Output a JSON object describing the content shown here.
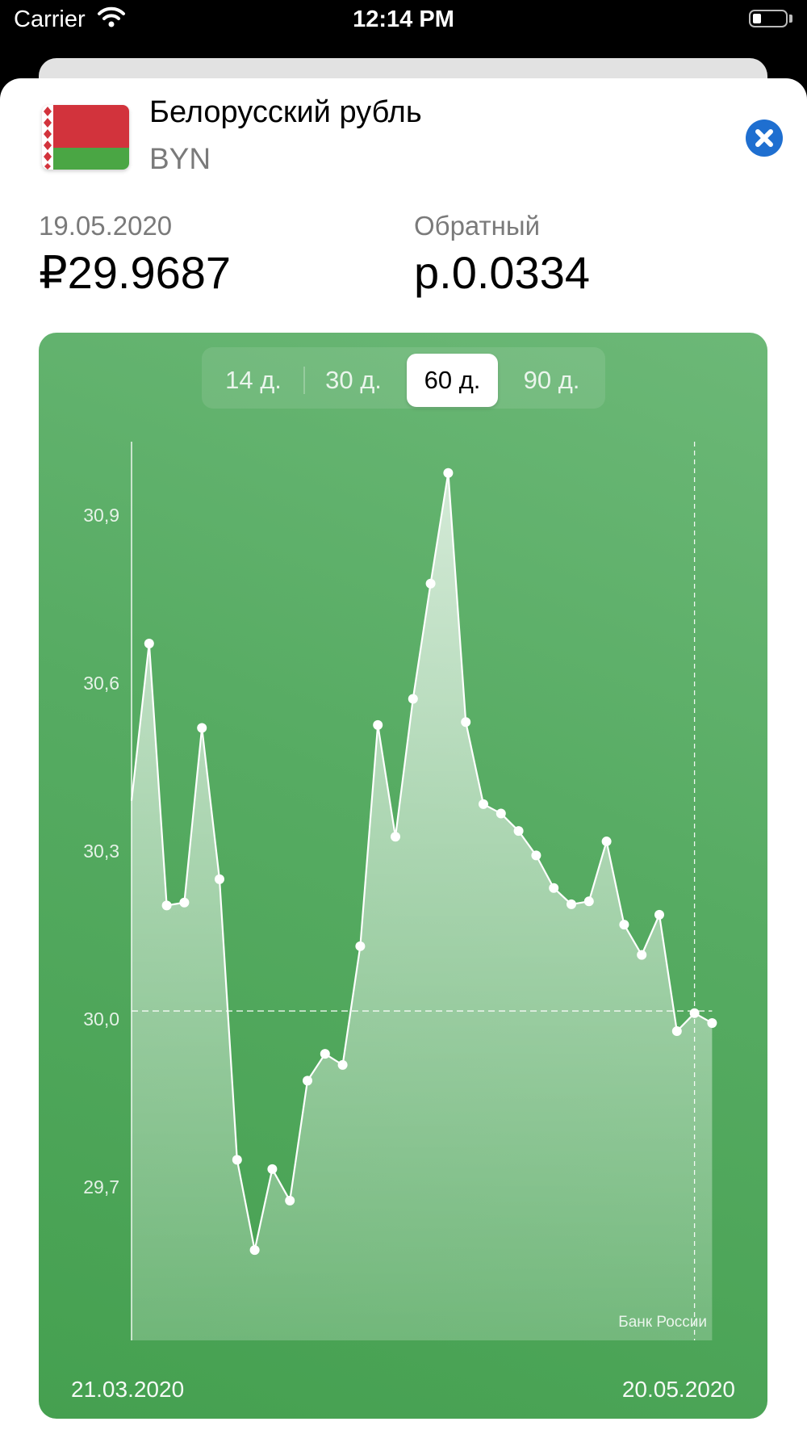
{
  "status_bar": {
    "carrier": "Carrier",
    "time": "12:14 PM"
  },
  "currency": {
    "name": "Белорусский рубль",
    "code": "BYN",
    "flag": "belarus-flag"
  },
  "rate": {
    "date": "19.05.2020",
    "value": "₽29.9687",
    "reverse_label": "Обратный",
    "reverse_value": "р.0.0334"
  },
  "period_selector": {
    "options": [
      "14 д.",
      "30 д.",
      "60 д.",
      "90 д."
    ],
    "selected": "60 д."
  },
  "chart_data": {
    "type": "area",
    "x_start": "21.03.2020",
    "x_end": "20.05.2020",
    "source": "Банк России",
    "y_ticks": [
      "30,9",
      "30,6",
      "30,3",
      "30,0",
      "29,7"
    ],
    "ylim": [
      29.4,
      31.03
    ],
    "values": [
      30.33,
      30.6,
      30.15,
      30.155,
      30.455,
      30.195,
      29.713,
      29.558,
      29.697,
      29.643,
      29.849,
      29.895,
      29.876,
      30.08,
      30.46,
      30.268,
      30.505,
      30.703,
      30.893,
      30.465,
      30.324,
      30.308,
      30.278,
      30.236,
      30.18,
      30.152,
      30.157,
      30.26,
      30.117,
      30.065,
      30.134,
      29.934,
      29.965,
      29.948
    ],
    "reference_value": 29.9687,
    "colors": {
      "background": "#56ab62",
      "line": "#ffffff"
    }
  },
  "icons": {
    "close": "close-icon",
    "wifi": "wifi-icon",
    "battery": "battery-icon"
  }
}
